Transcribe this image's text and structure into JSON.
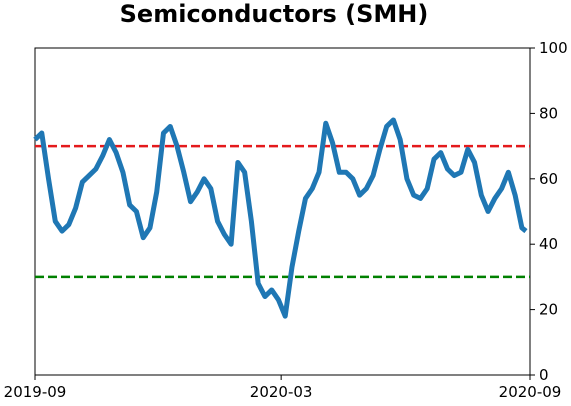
{
  "chart_data": {
    "type": "line",
    "title": "Semiconductors (SMH)",
    "x": [
      "2019-09-01",
      "2019-09-06",
      "2019-09-11",
      "2019-09-16",
      "2019-09-21",
      "2019-09-26",
      "2019-10-01",
      "2019-10-06",
      "2019-10-11",
      "2019-10-16",
      "2019-10-21",
      "2019-10-26",
      "2019-10-31",
      "2019-11-05",
      "2019-11-10",
      "2019-11-15",
      "2019-11-20",
      "2019-11-25",
      "2019-11-30",
      "2019-12-05",
      "2019-12-10",
      "2019-12-15",
      "2019-12-20",
      "2019-12-25",
      "2019-12-30",
      "2020-01-04",
      "2020-01-09",
      "2020-01-14",
      "2020-01-19",
      "2020-01-24",
      "2020-01-29",
      "2020-02-03",
      "2020-02-08",
      "2020-02-13",
      "2020-02-18",
      "2020-02-23",
      "2020-02-28",
      "2020-03-04",
      "2020-03-09",
      "2020-03-14",
      "2020-03-19",
      "2020-03-24",
      "2020-03-29",
      "2020-04-03",
      "2020-04-08",
      "2020-04-13",
      "2020-04-18",
      "2020-04-23",
      "2020-04-28",
      "2020-05-03",
      "2020-05-08",
      "2020-05-13",
      "2020-05-18",
      "2020-05-23",
      "2020-05-28",
      "2020-06-02",
      "2020-06-07",
      "2020-06-12",
      "2020-06-17",
      "2020-06-22",
      "2020-06-27",
      "2020-07-02",
      "2020-07-07",
      "2020-07-12",
      "2020-07-17",
      "2020-07-22",
      "2020-07-27",
      "2020-08-01",
      "2020-08-06",
      "2020-08-11",
      "2020-08-16",
      "2020-08-21",
      "2020-08-26",
      "2020-08-29"
    ],
    "series": [
      {
        "color": "#1f77b4",
        "values": [
          72,
          74,
          60,
          47,
          44,
          46,
          51,
          59,
          61,
          63,
          67,
          72,
          68,
          62,
          52,
          50,
          42,
          45,
          56,
          74,
          76,
          70,
          62,
          53,
          56,
          60,
          57,
          47,
          43,
          40,
          65,
          62,
          47,
          28,
          24,
          26,
          23,
          18,
          33,
          44,
          54,
          57,
          62,
          77,
          71,
          62,
          62,
          60,
          55,
          57,
          61,
          69,
          76,
          78,
          72,
          60,
          55,
          54,
          57,
          66,
          68,
          63,
          61,
          62,
          69,
          65,
          55,
          50,
          54,
          57,
          62,
          55,
          45,
          44
        ]
      }
    ],
    "hlines": [
      {
        "value": 70,
        "color": "#e41a1c"
      },
      {
        "value": 30,
        "color": "#008000"
      }
    ],
    "xlim": [
      "2019-09",
      "2020-09"
    ],
    "xticks": [
      "2019-09",
      "2020-03",
      "2020-09"
    ],
    "ylim": [
      0,
      100
    ],
    "yticks": [
      0,
      20,
      40,
      60,
      80,
      100
    ],
    "grid": false
  }
}
